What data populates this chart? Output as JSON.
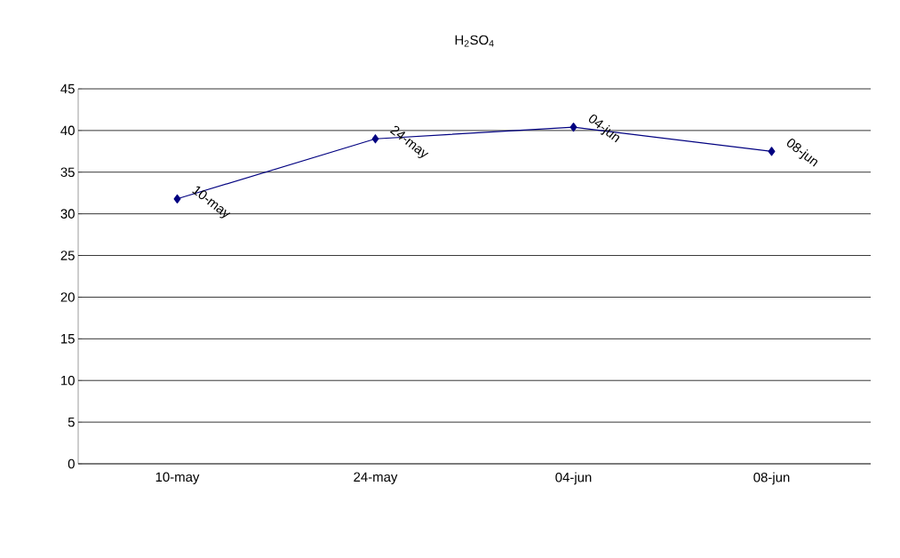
{
  "chart_data": {
    "type": "line",
    "title": "H$_{2}$SO$_{4}$",
    "categories": [
      "10-may",
      "24-may",
      "04-jun",
      "08-jun"
    ],
    "series": [
      {
        "color": "#000080",
        "values": [
          31.8,
          39.0,
          40.4,
          37.5
        ]
      }
    ],
    "ylim": [
      0,
      45
    ],
    "yticks": [
      0,
      5,
      10,
      15,
      20,
      25,
      30,
      35,
      40,
      45
    ],
    "grid": "y",
    "marker": "diamond",
    "line_style": "solid",
    "annotations": [
      {
        "text": "10-may",
        "x": "10-may",
        "y": 31.8
      },
      {
        "text": "24-may",
        "x": "24-may",
        "y": 39.0
      },
      {
        "text": "04-jun",
        "x": "04-jun",
        "y": 40.4
      },
      {
        "text": "08-jun",
        "x": "08-jun",
        "y": 37.5
      }
    ]
  }
}
